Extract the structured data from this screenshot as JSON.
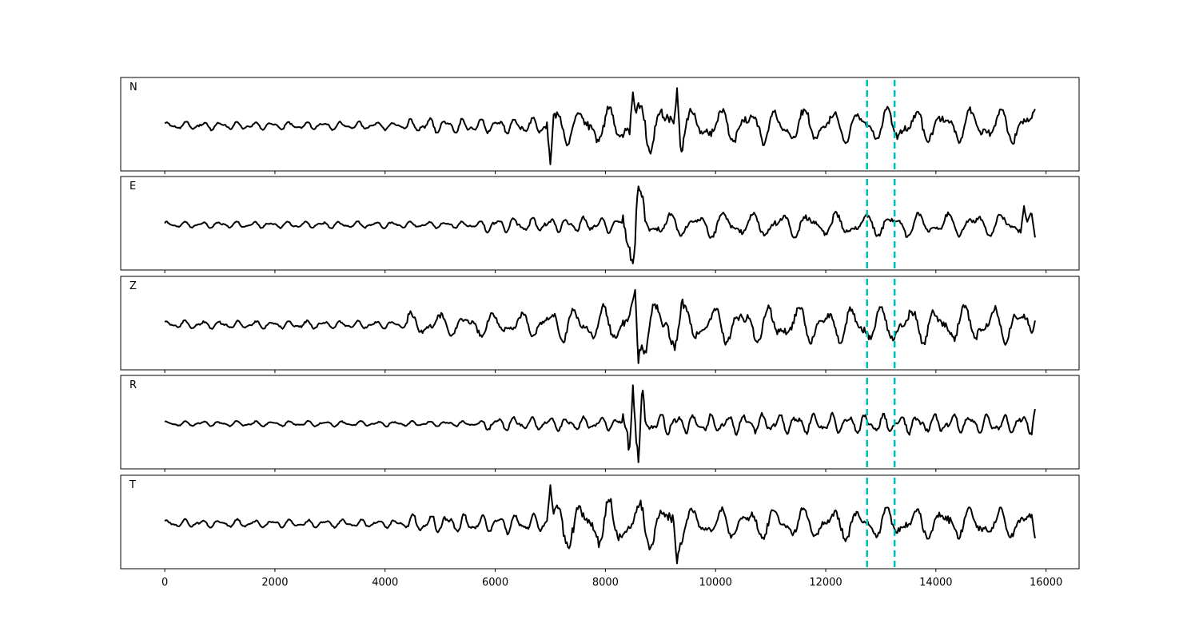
{
  "chart_data": {
    "type": "line",
    "title": "",
    "xlabel": "",
    "ylabel": "",
    "xlim": [
      -800,
      16600
    ],
    "x_ticks": [
      0,
      2000,
      4000,
      6000,
      8000,
      10000,
      12000,
      14000,
      16000
    ],
    "x_tick_labels": [
      "0",
      "2000",
      "4000",
      "6000",
      "8000",
      "10000",
      "12000",
      "14000",
      "16000"
    ],
    "grid": false,
    "y_ticks_visible": false,
    "trace_color": "#000000",
    "marker_color": "#00bfbf",
    "markers_x": [
      12750,
      13250
    ],
    "x_start": 0,
    "x_end": 15800,
    "panels": [
      {
        "label": "N",
        "segments": [
          {
            "x0": 0,
            "x1": 4400,
            "amp": 0.12
          },
          {
            "x0": 4400,
            "x1": 6900,
            "amp": 0.22
          },
          {
            "x0": 6900,
            "x1": 8400,
            "amp": 0.55
          },
          {
            "x0": 8400,
            "x1": 9400,
            "amp": 0.75
          },
          {
            "x0": 9400,
            "x1": 15800,
            "amp": 0.5
          }
        ],
        "peaks": [
          {
            "x": 7000,
            "v": -0.92
          },
          {
            "x": 8500,
            "v": 0.8
          },
          {
            "x": 9300,
            "v": 0.9
          },
          {
            "x": 15800,
            "v": 0.4
          }
        ]
      },
      {
        "label": "E",
        "segments": [
          {
            "x0": 0,
            "x1": 5800,
            "amp": 0.1
          },
          {
            "x0": 5800,
            "x1": 8300,
            "amp": 0.22
          },
          {
            "x0": 8300,
            "x1": 8700,
            "amp": 0.9
          },
          {
            "x0": 8700,
            "x1": 15800,
            "amp": 0.35
          }
        ],
        "peaks": [
          {
            "x": 8500,
            "v": -0.92
          },
          {
            "x": 8600,
            "v": 0.92
          },
          {
            "x": 15600,
            "v": 0.45
          },
          {
            "x": 15800,
            "v": -0.3
          }
        ]
      },
      {
        "label": "Z",
        "segments": [
          {
            "x0": 0,
            "x1": 4400,
            "amp": 0.12
          },
          {
            "x0": 4400,
            "x1": 6900,
            "amp": 0.35
          },
          {
            "x0": 6900,
            "x1": 8400,
            "amp": 0.55
          },
          {
            "x0": 8400,
            "x1": 9400,
            "amp": 0.85
          },
          {
            "x0": 9400,
            "x1": 15800,
            "amp": 0.55
          }
        ],
        "peaks": [
          {
            "x": 8550,
            "v": 0.92
          },
          {
            "x": 8600,
            "v": -0.92
          },
          {
            "x": 15800,
            "v": 0.1
          }
        ]
      },
      {
        "label": "R",
        "segments": [
          {
            "x0": 0,
            "x1": 5800,
            "amp": 0.08
          },
          {
            "x0": 5800,
            "x1": 8300,
            "amp": 0.2
          },
          {
            "x0": 8300,
            "x1": 8700,
            "amp": 0.9
          },
          {
            "x0": 8700,
            "x1": 15800,
            "amp": 0.3
          }
        ],
        "peaks": [
          {
            "x": 8500,
            "v": 0.92
          },
          {
            "x": 8600,
            "v": -0.92
          },
          {
            "x": 15800,
            "v": 0.35
          }
        ]
      },
      {
        "label": "T",
        "segments": [
          {
            "x0": 0,
            "x1": 4400,
            "amp": 0.12
          },
          {
            "x0": 4400,
            "x1": 6900,
            "amp": 0.28
          },
          {
            "x0": 6900,
            "x1": 9400,
            "amp": 0.7
          },
          {
            "x0": 9400,
            "x1": 15800,
            "amp": 0.45
          }
        ],
        "peaks": [
          {
            "x": 7000,
            "v": 0.92
          },
          {
            "x": 9300,
            "v": -0.95
          },
          {
            "x": 15800,
            "v": -0.35
          }
        ]
      }
    ]
  }
}
